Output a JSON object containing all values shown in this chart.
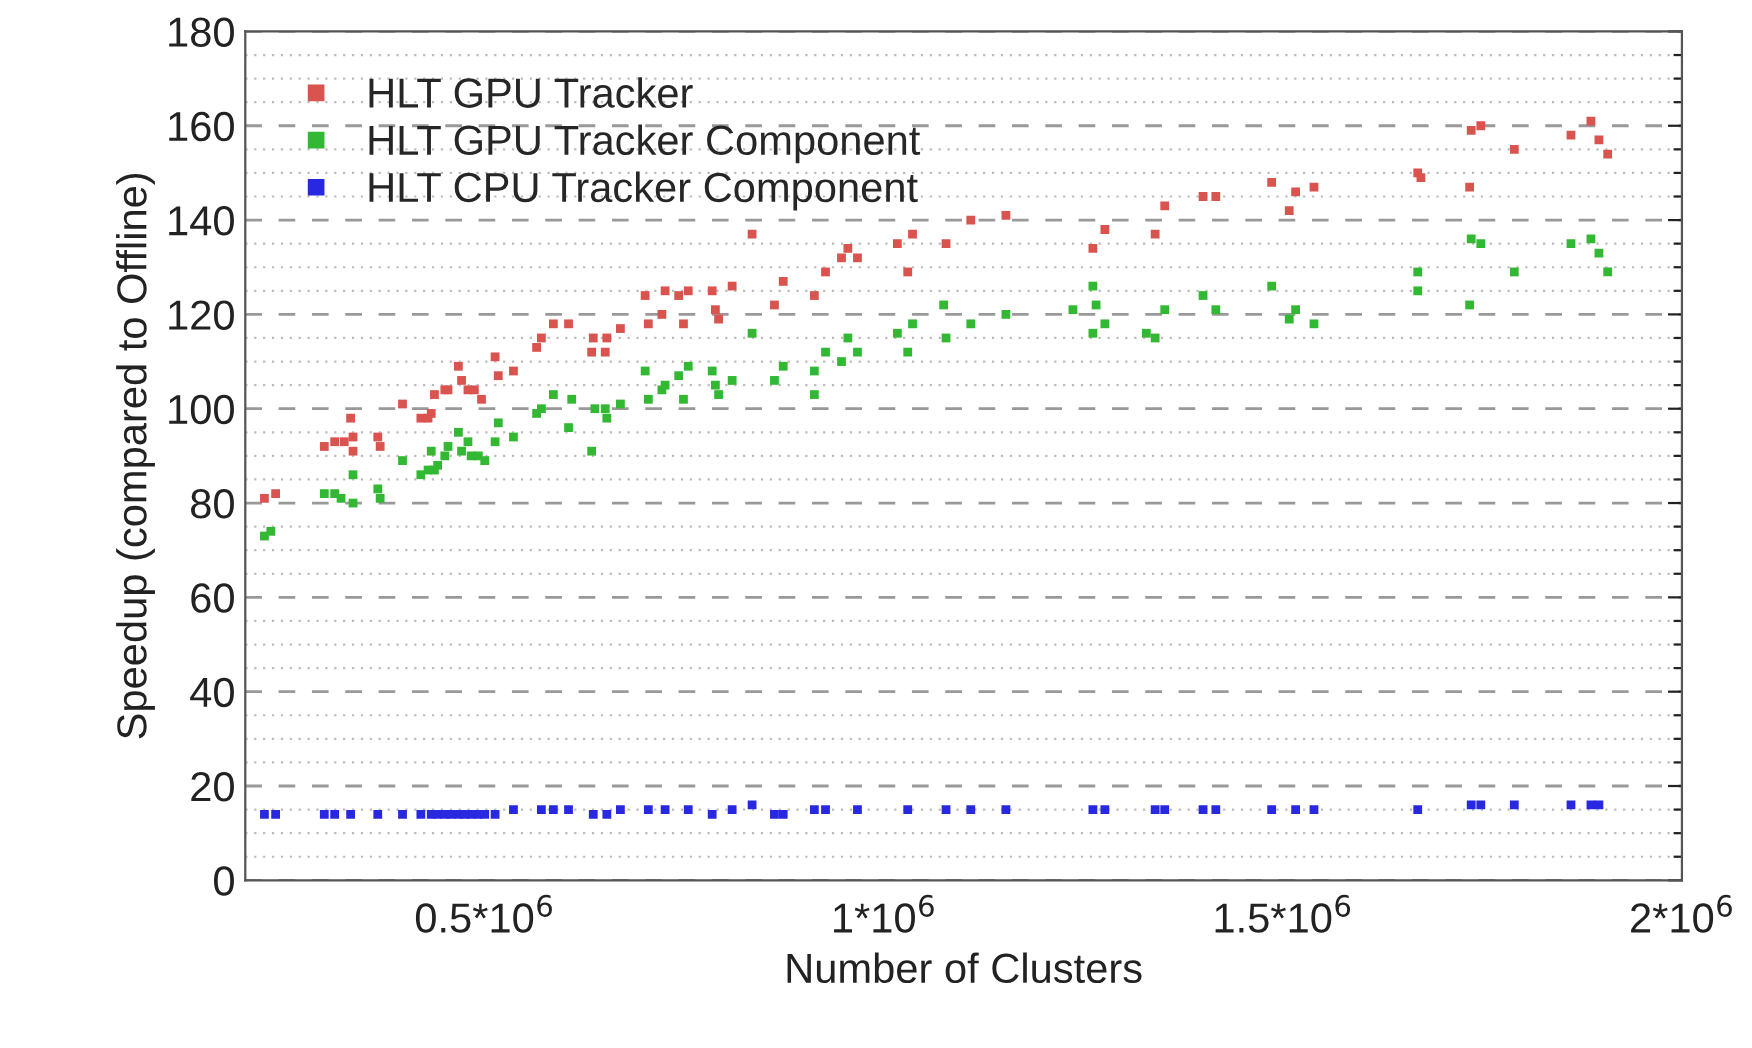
{
  "chart_data": {
    "type": "scatter",
    "xlabel": "Number of Clusters",
    "ylabel": "Speedup (compared to Offline)",
    "xlim": [
      200000,
      2000000
    ],
    "xticks": [
      {
        "value": 500000,
        "label": "0.5*10$^{6}$"
      },
      {
        "value": 1000000,
        "label": "1*10$^{6}$"
      },
      {
        "value": 1500000,
        "label": "1.5*10$^{6}$"
      },
      {
        "value": 2000000,
        "label": "2*10$^{6}$"
      }
    ],
    "ylim": [
      0,
      180
    ],
    "yticks": [
      0,
      {
        "value": 5,
        "label": null
      },
      {
        "value": 10,
        "label": null
      },
      {
        "value": 15,
        "label": null
      },
      20,
      {
        "value": 25,
        "label": null
      },
      {
        "value": 30,
        "label": null
      },
      {
        "value": 35,
        "label": null
      },
      40,
      {
        "value": 45,
        "label": null
      },
      {
        "value": 50,
        "label": null
      },
      {
        "value": 55,
        "label": null
      },
      60,
      {
        "value": 65,
        "label": null
      },
      {
        "value": 70,
        "label": null
      },
      {
        "value": 75,
        "label": null
      },
      80,
      {
        "value": 85,
        "label": null
      },
      {
        "value": 90,
        "label": null
      },
      {
        "value": 95,
        "label": null
      },
      100,
      {
        "value": 105,
        "label": null
      },
      {
        "value": 110,
        "label": null
      },
      {
        "value": 115,
        "label": null
      },
      120,
      {
        "value": 125,
        "label": null
      },
      {
        "value": 130,
        "label": null
      },
      {
        "value": 135,
        "label": null
      },
      140,
      {
        "value": 145,
        "label": null
      },
      {
        "value": 150,
        "label": null
      },
      {
        "value": 155,
        "label": null
      },
      160,
      {
        "value": 165,
        "label": null
      },
      {
        "value": 170,
        "label": null
      },
      {
        "value": 175,
        "label": null
      },
      180
    ],
    "grid": "y",
    "legend": "top left",
    "marker": "square",
    "series": [
      {
        "name": "HLT GPU Tracker",
        "color": "#d9534f",
        "x": [
          224000,
          238000,
          299000,
          312000,
          324000,
          335000,
          332000,
          335000,
          366000,
          369000,
          397000,
          420000,
          429000,
          433000,
          437000,
          450000,
          454000,
          467000,
          471000,
          479000,
          487000,
          496000,
          513000,
          517000,
          536000,
          565000,
          571000,
          586000,
          605000,
          636000,
          653000,
          634000,
          651000,
          670000,
          701000,
          705000,
          722000,
          726000,
          743000,
          749000,
          755000,
          785000,
          789000,
          793000,
          810000,
          835000,
          863000,
          874000,
          913000,
          927000,
          947000,
          955000,
          967000,
          1017000,
          1030000,
          1036000,
          1078000,
          1109000,
          1153000,
          1262000,
          1277000,
          1340000,
          1352000,
          1400000,
          1416000,
          1486000,
          1508000,
          1516000,
          1539000,
          1669000,
          1673000,
          1734000,
          1736000,
          1748000,
          1790000,
          1861000,
          1886000,
          1896000,
          1907000
        ],
        "values": [
          81,
          82,
          92,
          93,
          93,
          94,
          98,
          91,
          94,
          92,
          101,
          98,
          98,
          99,
          103,
          104,
          104,
          109,
          106,
          104,
          104,
          102,
          111,
          107,
          108,
          113,
          115,
          118,
          118,
          115,
          115,
          112,
          112,
          117,
          124,
          118,
          120,
          125,
          124,
          118,
          125,
          125,
          121,
          119,
          126,
          137,
          122,
          127,
          124,
          129,
          132,
          134,
          132,
          135,
          129,
          137,
          135,
          140,
          141,
          134,
          138,
          137,
          143,
          145,
          145,
          148,
          142,
          146,
          147,
          150,
          149,
          147,
          159,
          160,
          155,
          158,
          161,
          157,
          154
        ]
      },
      {
        "name": "HLT GPU Tracker Component",
        "color": "#33b833",
        "x": [
          224000,
          232000,
          299000,
          312000,
          320000,
          335000,
          335000,
          366000,
          369000,
          397000,
          420000,
          429000,
          433000,
          437000,
          441000,
          450000,
          454000,
          467000,
          471000,
          479000,
          483000,
          492000,
          500000,
          513000,
          517000,
          536000,
          565000,
          571000,
          586000,
          605000,
          609000,
          634000,
          638000,
          651000,
          653000,
          670000,
          701000,
          705000,
          722000,
          726000,
          743000,
          749000,
          755000,
          785000,
          789000,
          793000,
          810000,
          835000,
          863000,
          874000,
          913000,
          913000,
          927000,
          947000,
          955000,
          967000,
          1017000,
          1030000,
          1036000,
          1075000,
          1078000,
          1109000,
          1153000,
          1237000,
          1262000,
          1262000,
          1266000,
          1277000,
          1329000,
          1340000,
          1352000,
          1400000,
          1416000,
          1486000,
          1508000,
          1516000,
          1539000,
          1669000,
          1669000,
          1734000,
          1736000,
          1748000,
          1790000,
          1861000,
          1886000,
          1896000,
          1907000
        ],
        "values": [
          73,
          74,
          82,
          82,
          81,
          80,
          86,
          83,
          81,
          89,
          86,
          87,
          91,
          87,
          88,
          90,
          92,
          95,
          91,
          93,
          90,
          90,
          89,
          93,
          97,
          94,
          99,
          100,
          103,
          96,
          102,
          91,
          100,
          100,
          98,
          101,
          108,
          102,
          104,
          105,
          107,
          102,
          109,
          108,
          105,
          103,
          106,
          116,
          106,
          109,
          108,
          103,
          112,
          110,
          115,
          112,
          116,
          112,
          118,
          122,
          115,
          118,
          120,
          121,
          116,
          126,
          122,
          118,
          116,
          115,
          121,
          124,
          121,
          126,
          119,
          121,
          118,
          129,
          125,
          122,
          136,
          135,
          129,
          135,
          136,
          133,
          129
        ]
      },
      {
        "name": "HLT CPU Tracker Component",
        "color": "#2828e0",
        "x": [
          224000,
          238000,
          299000,
          312000,
          332000,
          366000,
          397000,
          420000,
          433000,
          441000,
          450000,
          458000,
          467000,
          475000,
          483000,
          492000,
          500000,
          513000,
          536000,
          571000,
          586000,
          605000,
          636000,
          653000,
          670000,
          705000,
          726000,
          755000,
          785000,
          810000,
          835000,
          863000,
          874000,
          913000,
          927000,
          967000,
          1030000,
          1078000,
          1109000,
          1153000,
          1262000,
          1277000,
          1340000,
          1352000,
          1400000,
          1416000,
          1486000,
          1516000,
          1539000,
          1669000,
          1736000,
          1748000,
          1790000,
          1861000,
          1886000,
          1896000
        ],
        "values": [
          14,
          14,
          14,
          14,
          14,
          14,
          14,
          14,
          14,
          14,
          14,
          14,
          14,
          14,
          14,
          14,
          14,
          14,
          15,
          15,
          15,
          15,
          14,
          14,
          15,
          15,
          15,
          15,
          14,
          15,
          16,
          14,
          14,
          15,
          15,
          15,
          15,
          15,
          15,
          15,
          15,
          15,
          15,
          15,
          15,
          15,
          15,
          15,
          15,
          15,
          16,
          16,
          16,
          16,
          16,
          16
        ]
      }
    ]
  }
}
